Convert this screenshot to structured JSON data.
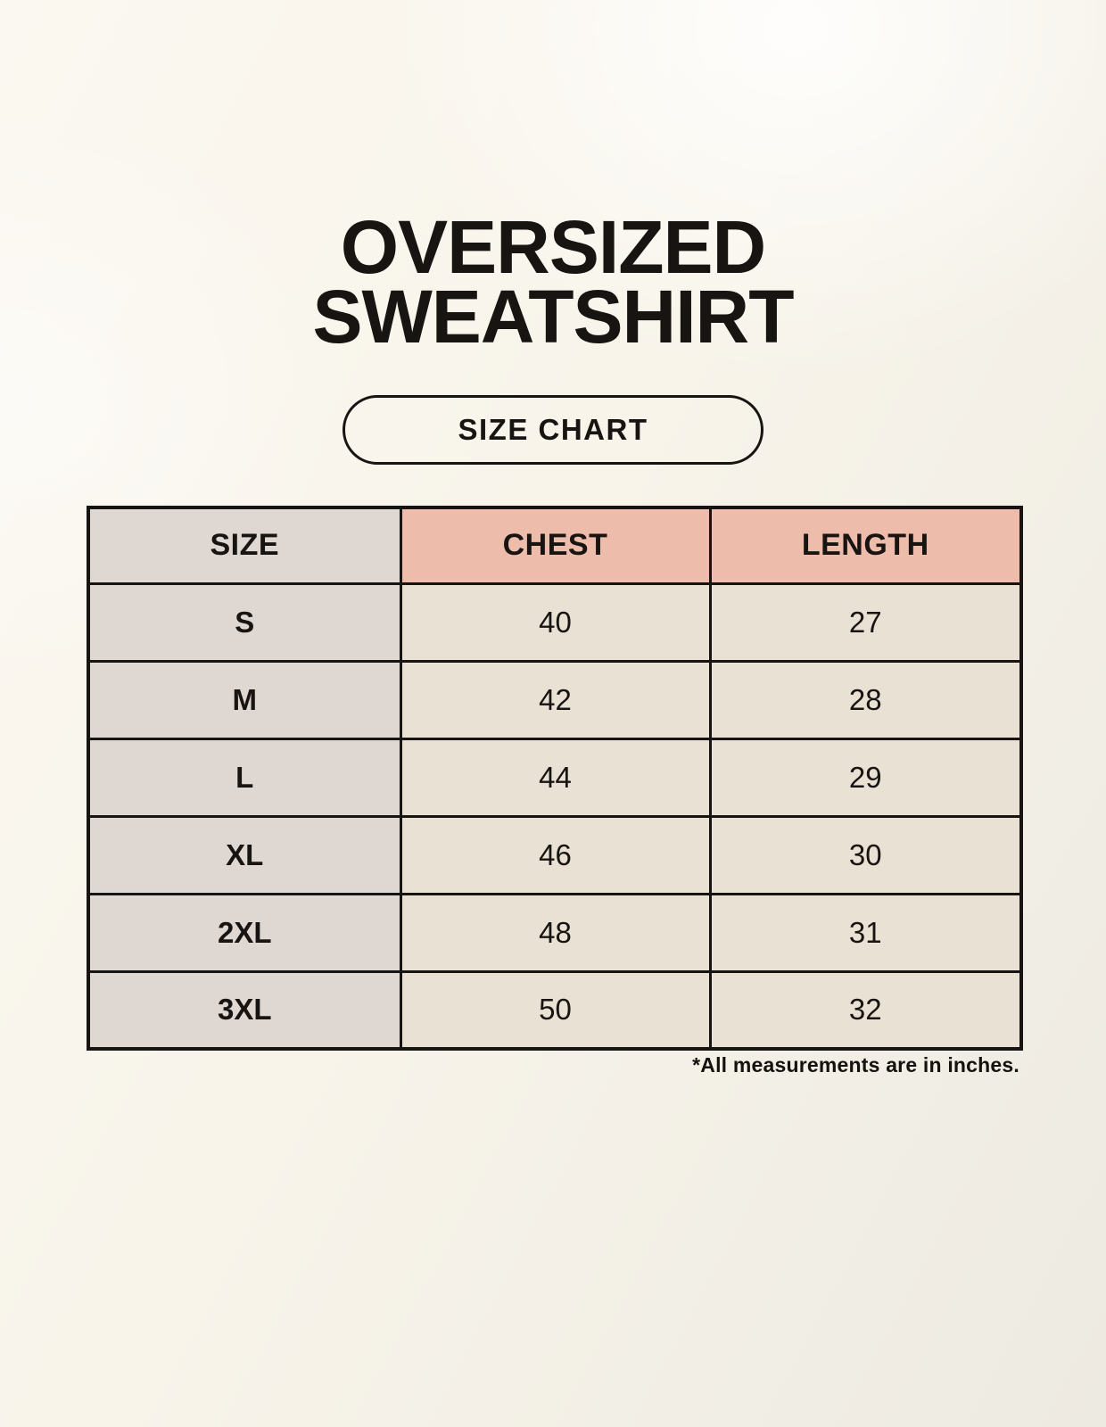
{
  "header": {
    "title_line1": "OVERSIZED",
    "title_line2": "SWEATSHIRT",
    "badge_label": "SIZE CHART"
  },
  "table": {
    "columns": [
      "SIZE",
      "CHEST",
      "LENGTH"
    ],
    "rows": [
      {
        "size": "S",
        "chest": "40",
        "length": "27"
      },
      {
        "size": "M",
        "chest": "42",
        "length": "28"
      },
      {
        "size": "L",
        "chest": "44",
        "length": "29"
      },
      {
        "size": "XL",
        "chest": "46",
        "length": "30"
      },
      {
        "size": "2XL",
        "chest": "48",
        "length": "31"
      },
      {
        "size": "3XL",
        "chest": "50",
        "length": "32"
      }
    ]
  },
  "footnote": "*All measurements are in inches.",
  "colors": {
    "background": "#f8f4ea",
    "header_pink": "#eebcab",
    "size_column_gray": "#ded7d2",
    "cell_cream": "#e9e2d4",
    "border_and_text": "#171412"
  }
}
